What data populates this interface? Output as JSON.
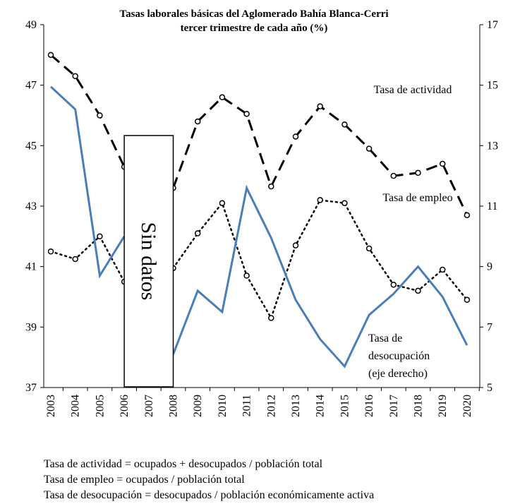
{
  "chart_data": {
    "type": "line",
    "title": "Tasas laborales básicas del Aglomerado Bahía Blanca-Cerri",
    "subtitle": "tercer trimestre de cada año (%)",
    "categories": [
      "2003",
      "2004",
      "2005",
      "2006",
      "2007",
      "2008",
      "2009",
      "2010",
      "2011",
      "2012",
      "2013",
      "2014",
      "2015",
      "2016",
      "2017",
      "2018",
      "2019",
      "2020"
    ],
    "series": [
      {
        "name": "Tasa de actividad",
        "color": "#000000",
        "dash": "dashed",
        "marker": true,
        "axis": "y",
        "values": [
          48.0,
          47.3,
          46.0,
          44.3,
          null,
          43.6,
          45.8,
          46.6,
          46.05,
          43.65,
          45.3,
          46.3,
          45.7,
          44.9,
          44.0,
          44.1,
          44.4,
          42.7
        ]
      },
      {
        "name": "Tasa de empleo",
        "color": "#000000",
        "dash": "dotted",
        "marker": true,
        "axis": "y",
        "values": [
          41.5,
          41.25,
          42.0,
          40.5,
          null,
          40.95,
          42.1,
          43.1,
          40.7,
          39.3,
          41.7,
          43.2,
          43.1,
          41.6,
          40.4,
          40.2,
          40.9,
          39.9
        ]
      },
      {
        "name": "Tasa de desocupación (eje derecho)",
        "color": "#4a7ebb",
        "dash": "solid",
        "marker": false,
        "axis": "y2",
        "values": [
          14.95,
          14.2,
          8.7,
          10.0,
          null,
          6.1,
          8.2,
          7.5,
          11.6,
          9.95,
          7.9,
          6.6,
          5.7,
          7.4,
          8.1,
          9.0,
          8.0,
          6.4
        ]
      }
    ],
    "annotations": [
      "Tasa de actividad",
      "Tasa de empleo",
      "Tasa de",
      "desocupación",
      "(eje derecho)",
      "Sin datos"
    ],
    "ylim": [
      37,
      49
    ],
    "yticks": [
      37,
      39,
      41,
      43,
      45,
      47,
      49
    ],
    "y2lim": [
      5,
      17
    ],
    "y2ticks": [
      5,
      7,
      9,
      11,
      13,
      15,
      17
    ],
    "notes": [
      "Tasa de actividad = ocupados + desocupados / población total",
      "Tasa de empleo = ocupados / población total",
      "Tasa de desocupación = desocupados / población económicamente activa"
    ]
  }
}
